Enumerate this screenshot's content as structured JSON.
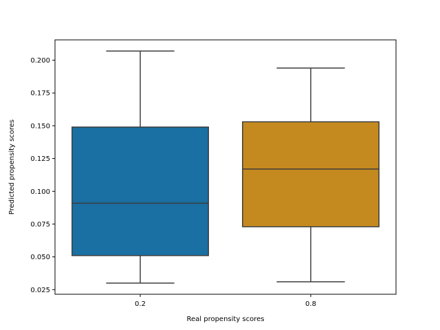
{
  "chart_data": {
    "type": "box",
    "title": "",
    "xlabel": "Real propensity scores",
    "ylabel": "Predicted propensity scores",
    "categories": [
      "0.2",
      "0.8"
    ],
    "ylim": [
      0.0215,
      0.2155
    ],
    "yticks": [
      0.025,
      0.05,
      0.075,
      0.1,
      0.125,
      0.15,
      0.175,
      0.2
    ],
    "ytick_labels": [
      "0.025",
      "0.050",
      "0.075",
      "0.100",
      "0.125",
      "0.150",
      "0.175",
      "0.200"
    ],
    "boxes": [
      {
        "category": "0.2",
        "whisker_low": 0.03,
        "q1": 0.051,
        "median": 0.091,
        "q3": 0.149,
        "whisker_high": 0.207,
        "color": "#1a6fa3"
      },
      {
        "category": "0.8",
        "whisker_low": 0.031,
        "q1": 0.073,
        "median": 0.117,
        "q3": 0.153,
        "whisker_high": 0.194,
        "color": "#c58a1f"
      }
    ],
    "grid": false,
    "line_color": "#3d3d3d"
  }
}
